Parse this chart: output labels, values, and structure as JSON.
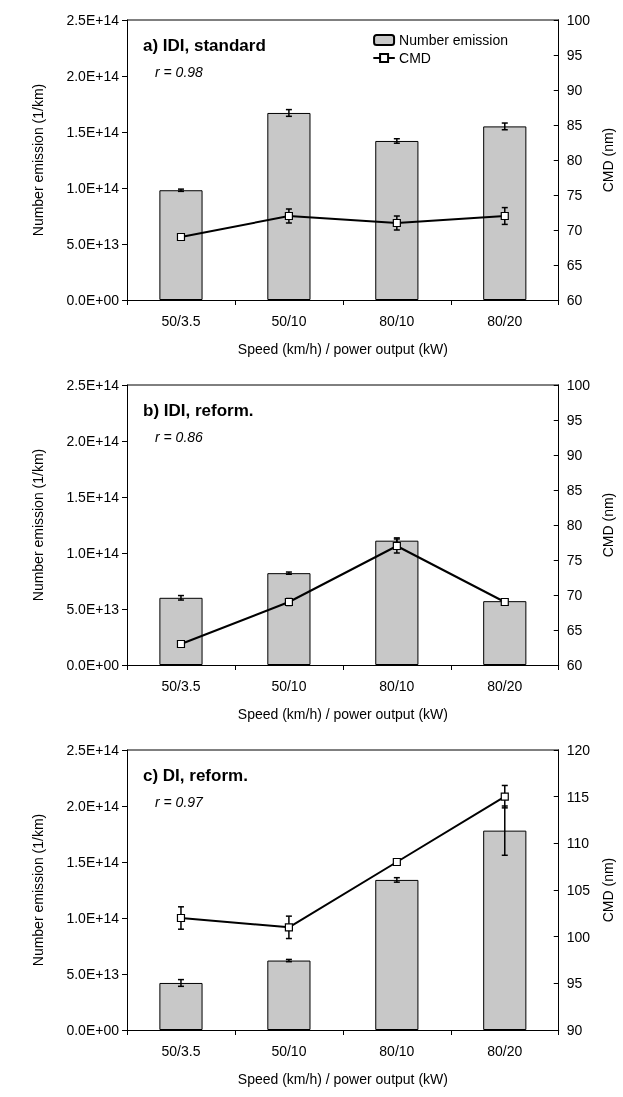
{
  "chart_data": [
    {
      "type": "bar",
      "title": "a) IDI, standard",
      "xlabel": "Speed (km/h) / power output (kW)",
      "ylabel": "Number emission (1/km)",
      "y2label": "CMD (nm)",
      "annotations": [
        "r = 0.98"
      ],
      "categories": [
        "50/3.5",
        "50/10",
        "80/10",
        "80/20"
      ],
      "series": [
        {
          "name": "Number emission",
          "color": "#c8c8c8",
          "values": [
            98000000000000.0,
            167000000000000.0,
            142000000000000.0,
            155000000000000.0
          ],
          "errors": [
            1000000000000.0,
            3000000000000.0,
            2000000000000.0,
            3000000000000.0
          ]
        },
        {
          "name": "CMD",
          "type": "line",
          "axis": "y2",
          "color": "#000000",
          "values": [
            69,
            72,
            71,
            72
          ],
          "errors": [
            0.3,
            1,
            1,
            1.2
          ]
        }
      ],
      "ylim": [
        0,
        250000000000000.0
      ],
      "yticks": [
        {
          "value": 0,
          "label": "0.0E+00"
        },
        {
          "value": 50000000000000.0,
          "label": "5.0E+13"
        },
        {
          "value": 100000000000000.0,
          "label": "1.0E+14"
        },
        {
          "value": 150000000000000.0,
          "label": "1.5E+14"
        },
        {
          "value": 200000000000000.0,
          "label": "2.0E+14"
        },
        {
          "value": 250000000000000.0,
          "label": "2.5E+14"
        }
      ],
      "y2lim": [
        60,
        100
      ],
      "y2ticks": [
        60,
        65,
        70,
        75,
        80,
        85,
        90,
        95,
        100
      ],
      "legend": "top right",
      "marker": "square",
      "line_style": "solid",
      "grid": false
    },
    {
      "type": "bar",
      "title": "b) IDI, reform.",
      "xlabel": "Speed (km/h) / power output (kW)",
      "ylabel": "Number emission (1/km)",
      "y2label": "CMD (nm)",
      "annotations": [
        "r = 0.86"
      ],
      "categories": [
        "50/3.5",
        "50/10",
        "80/10",
        "80/20"
      ],
      "series": [
        {
          "color": "#c8c8c8",
          "values": [
            60000000000000.0,
            82000000000000.0,
            111000000000000.0,
            57000000000000.0
          ],
          "errors": [
            2000000000000.0,
            1000000000000.0,
            2500000000000.0,
            0
          ]
        },
        {
          "type": "line",
          "axis": "y2",
          "color": "#000000",
          "values": [
            63,
            69,
            77,
            69
          ],
          "errors": [
            0.3,
            0.5,
            1,
            0.3
          ]
        }
      ],
      "ylim": [
        0,
        250000000000000.0
      ],
      "yticks": [
        {
          "value": 0,
          "label": "0.0E+00"
        },
        {
          "value": 50000000000000.0,
          "label": "5.0E+13"
        },
        {
          "value": 100000000000000.0,
          "label": "1.0E+14"
        },
        {
          "value": 150000000000000.0,
          "label": "1.5E+14"
        },
        {
          "value": 200000000000000.0,
          "label": "2.0E+14"
        },
        {
          "value": 250000000000000.0,
          "label": "2.5E+14"
        }
      ],
      "y2lim": [
        60,
        100
      ],
      "y2ticks": [
        60,
        65,
        70,
        75,
        80,
        85,
        90,
        95,
        100
      ],
      "marker": "square",
      "line_style": "solid",
      "grid": false
    },
    {
      "type": "bar",
      "title": "c) DI, reform.",
      "xlabel": "Speed (km/h) / power output (kW)",
      "ylabel": "Number emission (1/km)",
      "y2label": "CMD (nm)",
      "annotations": [
        "r = 0.97"
      ],
      "categories": [
        "50/3.5",
        "50/10",
        "80/10",
        "80/20"
      ],
      "series": [
        {
          "color": "#c8c8c8",
          "values": [
            42000000000000.0,
            62000000000000.0,
            134000000000000.0,
            178000000000000.0
          ],
          "errors": [
            3000000000000.0,
            1000000000000.0,
            2000000000000.0,
            22000000000000.0
          ]
        },
        {
          "type": "line",
          "axis": "y2",
          "color": "#000000",
          "values": [
            102,
            101,
            108,
            115
          ],
          "errors": [
            1.2,
            1.2,
            0.3,
            1.2
          ]
        }
      ],
      "ylim": [
        0,
        250000000000000.0
      ],
      "yticks": [
        {
          "value": 0,
          "label": "0.0E+00"
        },
        {
          "value": 50000000000000.0,
          "label": "5.0E+13"
        },
        {
          "value": 100000000000000.0,
          "label": "1.0E+14"
        },
        {
          "value": 150000000000000.0,
          "label": "1.5E+14"
        },
        {
          "value": 200000000000000.0,
          "label": "2.0E+14"
        },
        {
          "value": 250000000000000.0,
          "label": "2.5E+14"
        }
      ],
      "y2lim": [
        90,
        120
      ],
      "y2ticks": [
        90,
        95,
        100,
        105,
        110,
        115,
        120
      ],
      "marker": "square",
      "line_style": "solid",
      "grid": false
    }
  ]
}
